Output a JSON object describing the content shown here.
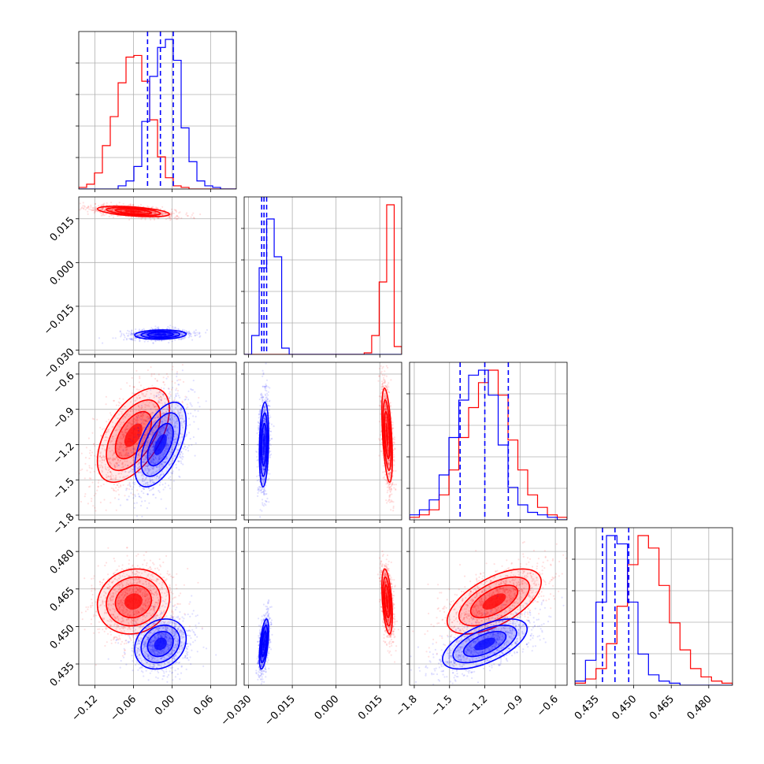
{
  "colors": {
    "series_a": "#ff0000",
    "series_b": "#0000ff",
    "grid": "#b0b0b0",
    "frame": "#000000"
  },
  "chart_data": {
    "type": "scatter",
    "subtype": "corner-plot",
    "parameters": [
      {
        "ticks": [
          "−0.12",
          "−0.06",
          "0.00",
          "0.06"
        ],
        "tick_values": [
          -0.12,
          -0.06,
          0.0,
          0.06
        ],
        "range": [
          -0.145,
          0.1
        ]
      },
      {
        "ticks": [
          "−0.030",
          "−0.015",
          "0.000",
          "0.015"
        ],
        "tick_values": [
          -0.03,
          -0.015,
          0.0,
          0.015
        ],
        "range": [
          -0.0315,
          0.0225
        ]
      },
      {
        "ticks": [
          "−1.8",
          "−1.5",
          "−1.2",
          "−0.9",
          "−0.6"
        ],
        "tick_values": [
          -1.8,
          -1.5,
          -1.2,
          -0.9,
          -0.6
        ],
        "range": [
          -1.84,
          -0.5
        ]
      },
      {
        "ticks": [
          "0.435",
          "0.450",
          "0.465",
          "0.480"
        ],
        "tick_values": [
          0.435,
          0.45,
          0.465,
          0.48
        ],
        "range": [
          0.4265,
          0.4895
        ]
      }
    ],
    "series": [
      {
        "color": "#ff0000",
        "mean": [
          -0.06,
          0.0175,
          -1.12,
          0.46
        ],
        "sd": [
          0.028,
          0.0009,
          0.2,
          0.0065
        ],
        "correlations": [
          [
            0,
            1,
            -0.5
          ],
          [
            0,
            2,
            0.55
          ],
          [
            0,
            3,
            0.1
          ],
          [
            1,
            2,
            -0.5
          ],
          [
            1,
            3,
            -0.45
          ],
          [
            2,
            3,
            0.6
          ]
        ],
        "histograms": [
          [
            0.01,
            0.03,
            0.1,
            0.27,
            0.45,
            0.66,
            0.82,
            0.83,
            0.67,
            0.43,
            0.2,
            0.07,
            0.02,
            0.01,
            0.0,
            0.0,
            0.0,
            0.0,
            0.0,
            0.0
          ],
          [
            0.0,
            0.0,
            0.0,
            0.0,
            0.0,
            0.0,
            0.0,
            0.0,
            0.0,
            0.0,
            0.0,
            0.0,
            0.0,
            0.0,
            0.0,
            0.0,
            0.01,
            0.12,
            0.46,
            0.95,
            0.05
          ],
          [
            0.01,
            0.02,
            0.04,
            0.1,
            0.2,
            0.33,
            0.45,
            0.55,
            0.6,
            0.5,
            0.32,
            0.2,
            0.1,
            0.05,
            0.02,
            0.01
          ],
          [
            0.01,
            0.03,
            0.08,
            0.2,
            0.38,
            0.58,
            0.72,
            0.66,
            0.48,
            0.3,
            0.17,
            0.08,
            0.04,
            0.02,
            0.01
          ]
        ]
      },
      {
        "color": "#0000ff",
        "mean": [
          -0.018,
          -0.0247,
          -1.2,
          0.443
        ],
        "sd": [
          0.02,
          0.0008,
          0.18,
          0.005
        ],
        "correlations": [
          [
            0,
            1,
            0.1
          ],
          [
            0,
            2,
            0.55
          ],
          [
            0,
            3,
            0.2
          ],
          [
            1,
            2,
            0.2
          ],
          [
            1,
            3,
            0.55
          ],
          [
            2,
            3,
            0.6
          ]
        ],
        "quantiles": [
          [
            -0.038,
            -0.018,
            0.002
          ],
          [
            -0.0255,
            -0.0247,
            -0.0238
          ],
          [
            -1.41,
            -1.2,
            -1.0
          ],
          [
            0.4375,
            0.4425,
            0.448
          ]
        ],
        "histograms": [
          [
            0.0,
            0.0,
            0.0,
            0.0,
            0.0,
            0.02,
            0.05,
            0.14,
            0.42,
            0.7,
            0.88,
            0.93,
            0.8,
            0.38,
            0.17,
            0.05,
            0.02,
            0.01,
            0.0,
            0.0
          ],
          [
            0.0,
            0.12,
            0.55,
            0.86,
            0.62,
            0.04,
            0.0,
            0.0,
            0.0,
            0.0,
            0.0,
            0.0,
            0.0,
            0.0,
            0.0,
            0.0,
            0.0,
            0.0,
            0.0,
            0.0,
            0.0
          ],
          [
            0.02,
            0.04,
            0.08,
            0.18,
            0.33,
            0.48,
            0.58,
            0.6,
            0.5,
            0.3,
            0.13,
            0.06,
            0.03,
            0.02,
            0.01,
            0.0
          ],
          [
            0.02,
            0.12,
            0.4,
            0.72,
            0.68,
            0.4,
            0.15,
            0.05,
            0.02,
            0.01,
            0.0,
            0.0,
            0.0,
            0.0,
            0.0
          ]
        ]
      }
    ]
  }
}
